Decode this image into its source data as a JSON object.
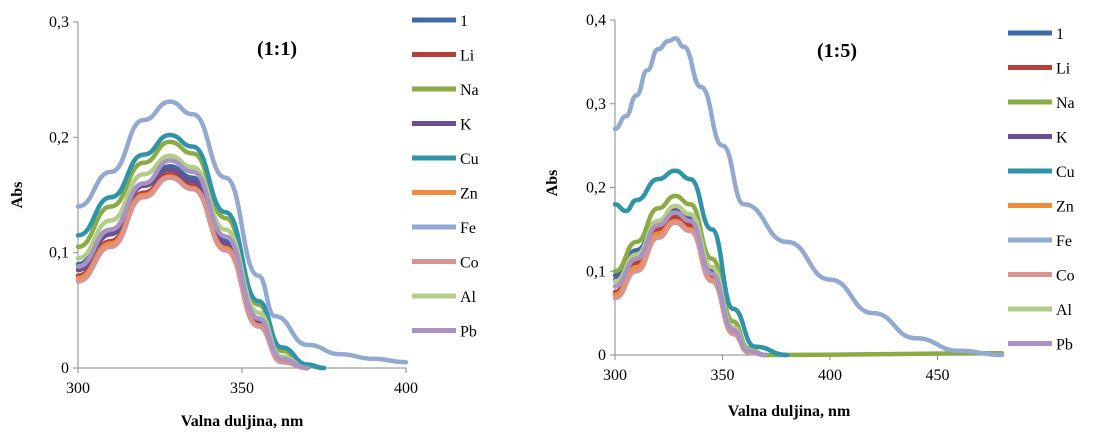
{
  "chart_data": [
    {
      "type": "line",
      "annotation": "(1:1)",
      "xlabel": "Valna duljina, nm",
      "ylabel": "Abs",
      "xlim": [
        300,
        400
      ],
      "ylim": [
        0,
        0.3
      ],
      "xticks": [
        "300",
        "350",
        "400"
      ],
      "yticks": [
        "0",
        "0,1",
        "0,2",
        "0,3"
      ],
      "grid": false,
      "legend_position": "right",
      "series": [
        {
          "name": "1",
          "color": "#3f6aa8",
          "x": [
            300,
            310,
            320,
            328,
            335,
            345,
            355,
            362,
            370
          ],
          "y": [
            0.09,
            0.12,
            0.16,
            0.175,
            0.165,
            0.11,
            0.04,
            0.008,
            0
          ]
        },
        {
          "name": "Li",
          "color": "#b5403b",
          "x": [
            300,
            310,
            320,
            328,
            335,
            345,
            355,
            362,
            370
          ],
          "y": [
            0.08,
            0.11,
            0.152,
            0.168,
            0.158,
            0.105,
            0.038,
            0.006,
            0
          ]
        },
        {
          "name": "Na",
          "color": "#8aab46",
          "x": [
            300,
            310,
            320,
            328,
            335,
            345,
            355,
            362,
            370,
            375
          ],
          "y": [
            0.105,
            0.14,
            0.178,
            0.196,
            0.186,
            0.13,
            0.055,
            0.015,
            0.002,
            0
          ]
        },
        {
          "name": "K",
          "color": "#6b4f8f",
          "x": [
            300,
            310,
            320,
            328,
            335,
            345,
            355,
            362,
            370
          ],
          "y": [
            0.085,
            0.116,
            0.158,
            0.172,
            0.162,
            0.108,
            0.04,
            0.007,
            0
          ]
        },
        {
          "name": "Cu",
          "color": "#2f94a8",
          "x": [
            300,
            310,
            320,
            328,
            335,
            345,
            355,
            362,
            370,
            375
          ],
          "y": [
            0.115,
            0.148,
            0.185,
            0.202,
            0.192,
            0.135,
            0.058,
            0.018,
            0.003,
            0
          ]
        },
        {
          "name": "Zn",
          "color": "#f08a3c",
          "x": [
            300,
            310,
            320,
            328,
            335,
            345,
            355,
            362,
            370
          ],
          "y": [
            0.078,
            0.108,
            0.15,
            0.166,
            0.156,
            0.104,
            0.037,
            0.006,
            0
          ]
        },
        {
          "name": "Fe",
          "color": "#93a9d1",
          "x": [
            300,
            310,
            320,
            328,
            335,
            345,
            355,
            360,
            370,
            380,
            390,
            400
          ],
          "y": [
            0.14,
            0.17,
            0.215,
            0.231,
            0.22,
            0.165,
            0.08,
            0.045,
            0.02,
            0.012,
            0.008,
            0.005
          ]
        },
        {
          "name": "Co",
          "color": "#d99491",
          "x": [
            300,
            310,
            320,
            328,
            335,
            345,
            355,
            362,
            370
          ],
          "y": [
            0.075,
            0.105,
            0.148,
            0.165,
            0.155,
            0.102,
            0.036,
            0.005,
            0
          ]
        },
        {
          "name": "Al",
          "color": "#b3cc8a",
          "x": [
            300,
            310,
            320,
            328,
            335,
            345,
            355,
            362,
            370
          ],
          "y": [
            0.095,
            0.128,
            0.168,
            0.184,
            0.174,
            0.12,
            0.048,
            0.01,
            0
          ]
        },
        {
          "name": "Pb",
          "color": "#a893c2",
          "x": [
            300,
            310,
            320,
            328,
            335,
            345,
            355,
            362,
            370
          ],
          "y": [
            0.088,
            0.12,
            0.16,
            0.18,
            0.17,
            0.114,
            0.043,
            0.008,
            0
          ]
        }
      ]
    },
    {
      "type": "line",
      "annotation": "(1:5)",
      "xlabel": "Valna duljina, nm",
      "ylabel": "Abs",
      "xlim": [
        300,
        480
      ],
      "ylim": [
        0,
        0.4
      ],
      "xticks": [
        "300",
        "350",
        "400",
        "450"
      ],
      "yticks": [
        "0",
        "0,1",
        "0,2",
        "0,3",
        "0,4"
      ],
      "grid": false,
      "legend_position": "right",
      "series": [
        {
          "name": "1",
          "color": "#3f6aa8",
          "x": [
            300,
            310,
            320,
            328,
            335,
            345,
            355,
            362,
            370
          ],
          "y": [
            0.095,
            0.125,
            0.16,
            0.175,
            0.165,
            0.1,
            0.03,
            0.005,
            0
          ]
        },
        {
          "name": "Li",
          "color": "#b5403b",
          "x": [
            300,
            310,
            320,
            328,
            335,
            345,
            355,
            362,
            370
          ],
          "y": [
            0.075,
            0.11,
            0.15,
            0.165,
            0.155,
            0.092,
            0.027,
            0.004,
            0
          ]
        },
        {
          "name": "Na",
          "color": "#8aab46",
          "x": [
            300,
            310,
            320,
            328,
            335,
            345,
            355,
            362,
            370,
            480
          ],
          "y": [
            0.1,
            0.135,
            0.175,
            0.19,
            0.18,
            0.115,
            0.04,
            0.008,
            0,
            0.002
          ]
        },
        {
          "name": "K",
          "color": "#6b4f8f",
          "x": [
            300,
            310,
            320,
            328,
            335,
            345,
            355,
            362,
            370
          ],
          "y": [
            0.09,
            0.12,
            0.158,
            0.172,
            0.162,
            0.098,
            0.029,
            0.005,
            0
          ]
        },
        {
          "name": "Cu",
          "color": "#2f94a8",
          "x": [
            300,
            305,
            310,
            320,
            328,
            335,
            345,
            355,
            365,
            380
          ],
          "y": [
            0.18,
            0.172,
            0.185,
            0.21,
            0.22,
            0.21,
            0.15,
            0.055,
            0.01,
            0
          ]
        },
        {
          "name": "Zn",
          "color": "#f08a3c",
          "x": [
            300,
            310,
            320,
            328,
            335,
            345,
            355,
            362,
            370
          ],
          "y": [
            0.072,
            0.105,
            0.145,
            0.16,
            0.15,
            0.09,
            0.026,
            0.004,
            0
          ]
        },
        {
          "name": "Fe",
          "color": "#93a9d1",
          "x": [
            300,
            305,
            310,
            315,
            320,
            325,
            328,
            332,
            340,
            350,
            360,
            380,
            400,
            420,
            440,
            460,
            480
          ],
          "y": [
            0.27,
            0.285,
            0.31,
            0.34,
            0.365,
            0.375,
            0.378,
            0.368,
            0.32,
            0.25,
            0.18,
            0.135,
            0.09,
            0.05,
            0.02,
            0.005,
            0
          ]
        },
        {
          "name": "Co",
          "color": "#d99491",
          "x": [
            300,
            310,
            320,
            328,
            335,
            345,
            355,
            362,
            370
          ],
          "y": [
            0.068,
            0.1,
            0.14,
            0.158,
            0.148,
            0.088,
            0.025,
            0.003,
            0
          ]
        },
        {
          "name": "Al",
          "color": "#b3cc8a",
          "x": [
            300,
            310,
            320,
            328,
            335,
            345,
            355,
            362,
            370
          ],
          "y": [
            0.088,
            0.12,
            0.16,
            0.178,
            0.168,
            0.105,
            0.033,
            0.006,
            0
          ]
        },
        {
          "name": "Pb",
          "color": "#a893c2",
          "x": [
            300,
            310,
            320,
            328,
            335,
            345,
            355,
            362,
            370
          ],
          "y": [
            0.082,
            0.115,
            0.155,
            0.17,
            0.16,
            0.097,
            0.03,
            0.005,
            0
          ]
        }
      ]
    }
  ]
}
